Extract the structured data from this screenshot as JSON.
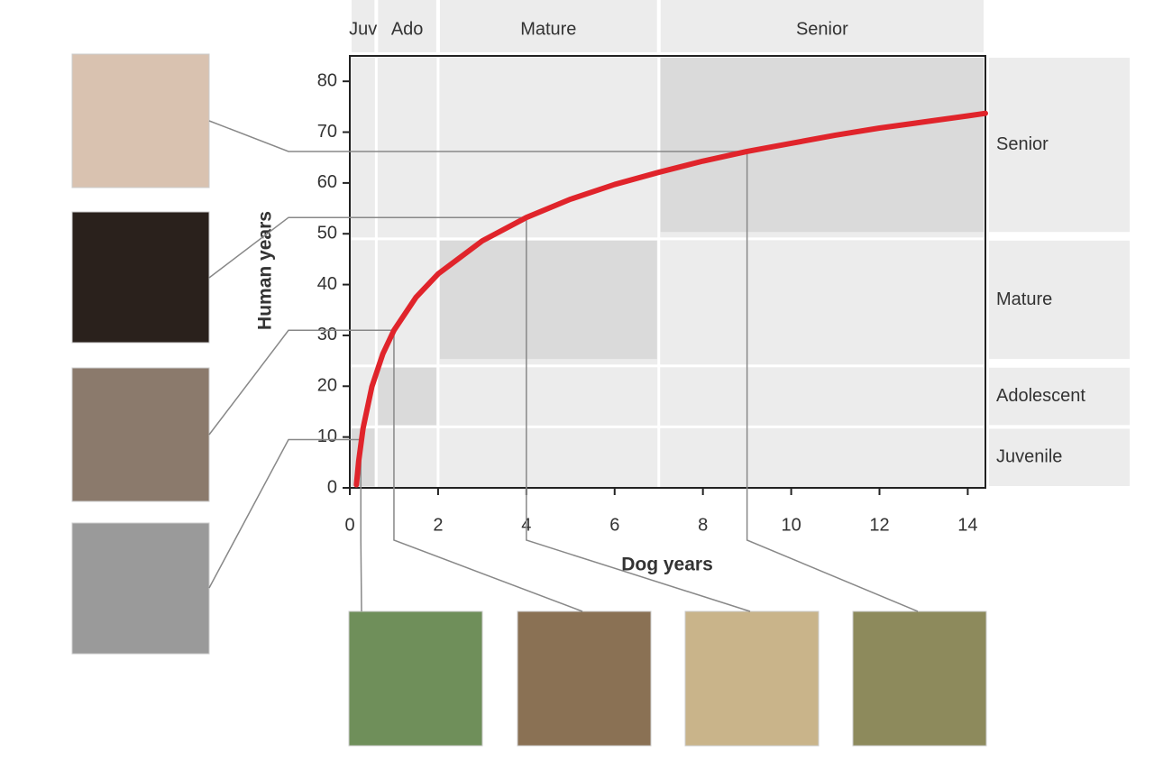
{
  "chart_data": {
    "type": "line",
    "x_label": "Dog years",
    "y_label": "Human years",
    "x": [
      0.15,
      0.2,
      0.3,
      0.5,
      0.75,
      1,
      1.5,
      2,
      3,
      4,
      5,
      6,
      7,
      8,
      9,
      10,
      11,
      12,
      13,
      14,
      14.4
    ],
    "series": [
      {
        "color": "#e0242b",
        "values": [
          0.6,
          5.2,
          11.7,
          19.9,
          26.4,
          31.0,
          37.5,
          42.1,
          48.6,
          53.2,
          56.8,
          59.7,
          62.1,
          64.3,
          66.2,
          67.8,
          69.4,
          70.8,
          72.0,
          73.2,
          73.7
        ]
      }
    ],
    "xlim": [
      0,
      14.4
    ],
    "ylim": [
      0,
      85
    ],
    "xticks": [
      0,
      2,
      4,
      6,
      8,
      10,
      12,
      14
    ],
    "yticks": [
      0,
      10,
      20,
      30,
      40,
      50,
      60,
      70,
      80
    ],
    "life_stages": [
      {
        "dog_label": "Juv",
        "human_label": "Juvenile",
        "dog_years": [
          0,
          0.6
        ],
        "human_years": [
          0,
          12
        ]
      },
      {
        "dog_label": "Ado",
        "human_label": "Adolescent",
        "dog_years": [
          0.6,
          2
        ],
        "human_years": [
          12,
          24
        ]
      },
      {
        "dog_label": "Mature",
        "human_label": "Mature",
        "dog_years": [
          2,
          7
        ],
        "human_years": [
          25,
          49
        ]
      },
      {
        "dog_label": "Senior",
        "human_label": "Senior",
        "dog_years": [
          7,
          14.4
        ],
        "human_years": [
          50,
          85
        ]
      }
    ],
    "reference_points": {
      "x": [
        0.25,
        1,
        4,
        9
      ],
      "y": [
        9.5,
        31.0,
        53.2,
        66.2
      ]
    }
  }
}
